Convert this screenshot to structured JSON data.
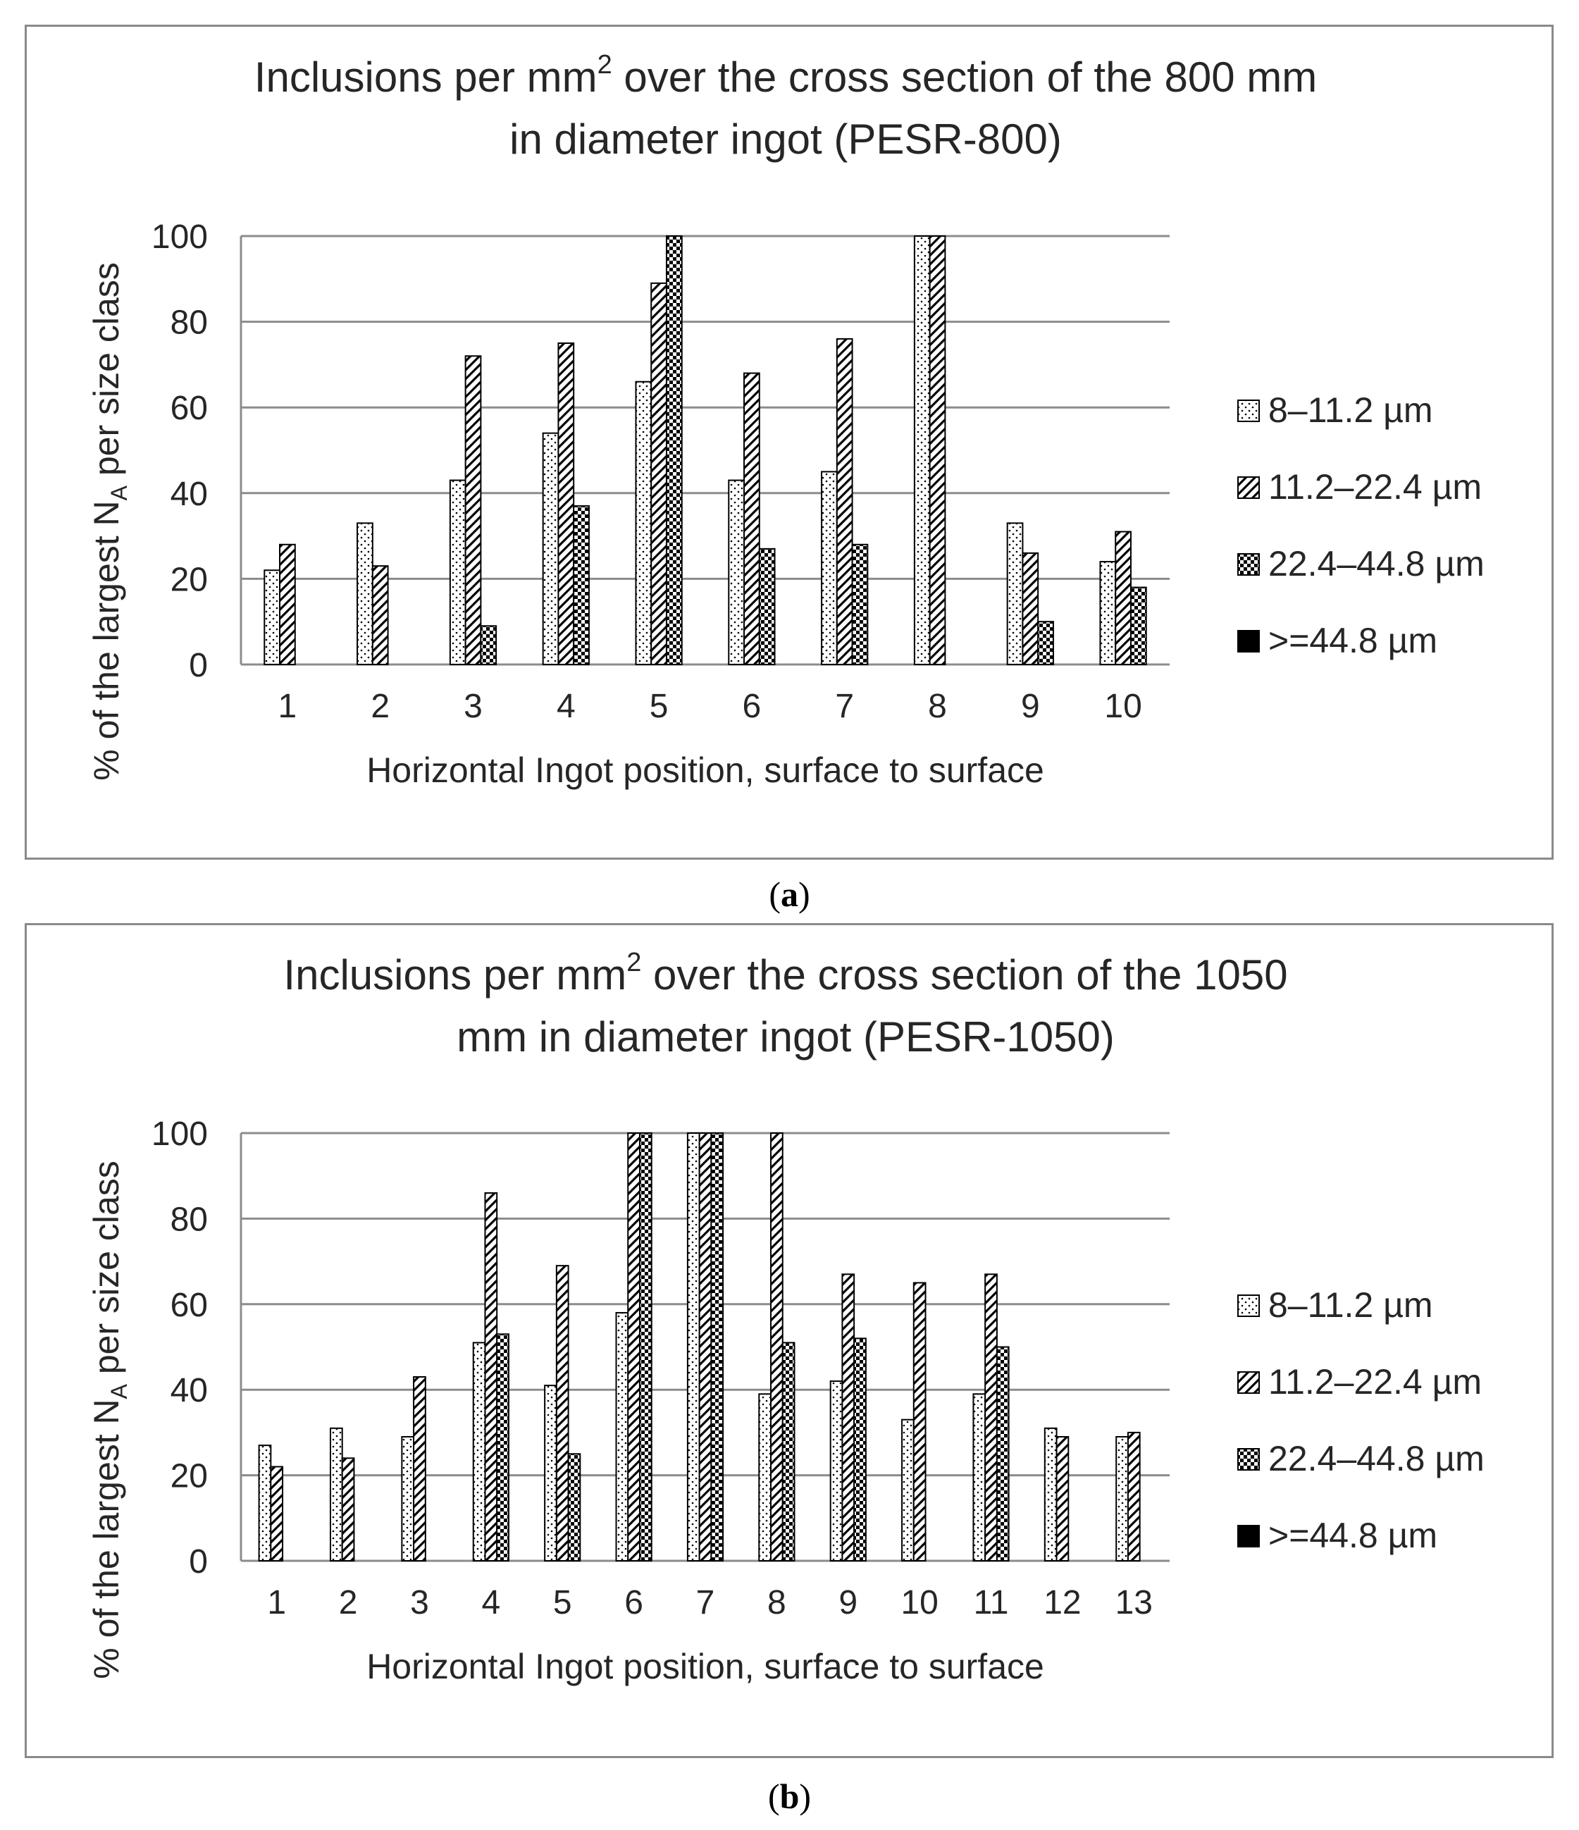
{
  "legend": [
    {
      "label": "8–11.2 µm",
      "pattern": "dots"
    },
    {
      "label": "11.2–22.4 µm",
      "pattern": "hatch"
    },
    {
      "label": "22.4–44.8 µm",
      "pattern": "checker"
    },
    {
      "label": ">=44.8 µm",
      "pattern": "solid"
    }
  ],
  "colors": {
    "frame": "#8a8a8a",
    "grid": "#8c8c8c",
    "bar_stroke": "#000000",
    "text": "#262626"
  },
  "chart_data": [
    {
      "type": "bar",
      "panel": "a",
      "caption_letter": "a",
      "title_line1": "Inclusions per mm",
      "title_sup": "2",
      "title_line1_rest": " over the cross section of the 800 mm",
      "title_line2": "in diameter ingot (PESR-800)",
      "ylabel_main": "% of the largest N",
      "ylabel_sub": "A",
      "ylabel_rest": " per size class",
      "xlabel": "Horizontal Ingot position, surface to surface",
      "ylim": [
        0,
        100
      ],
      "yticks": [
        "0",
        "20",
        "40",
        "60",
        "80",
        "100"
      ],
      "categories": [
        "1",
        "2",
        "3",
        "4",
        "5",
        "6",
        "7",
        "8",
        "9",
        "10"
      ],
      "series": [
        {
          "name": "8–11.2 µm",
          "values": [
            22,
            33,
            43,
            54,
            66,
            43,
            45,
            100,
            33,
            24
          ]
        },
        {
          "name": "11.2–22.4 µm",
          "values": [
            28,
            23,
            72,
            75,
            89,
            68,
            76,
            100,
            26,
            31
          ]
        },
        {
          "name": "22.4–44.8 µm",
          "values": [
            0,
            0,
            9,
            37,
            100,
            27,
            28,
            0,
            10,
            18
          ]
        },
        {
          "name": ">=44.8 µm",
          "values": [
            0,
            0,
            0,
            0,
            0,
            0,
            0,
            0,
            0,
            0
          ]
        }
      ]
    },
    {
      "type": "bar",
      "panel": "b",
      "caption_letter": "b",
      "title_line1": "Inclusions per mm",
      "title_sup": "2",
      "title_line1_rest": " over the cross section of the 1050",
      "title_line2": "mm in diameter ingot (PESR-1050)",
      "ylabel_main": "% of the largest N",
      "ylabel_sub": "A",
      "ylabel_rest": " per size class",
      "xlabel": "Horizontal Ingot position, surface to surface",
      "ylim": [
        0,
        100
      ],
      "yticks": [
        "0",
        "20",
        "40",
        "60",
        "80",
        "100"
      ],
      "categories": [
        "1",
        "2",
        "3",
        "4",
        "5",
        "6",
        "7",
        "8",
        "9",
        "10",
        "11",
        "12",
        "13"
      ],
      "series": [
        {
          "name": "8–11.2 µm",
          "values": [
            27,
            31,
            29,
            51,
            41,
            58,
            100,
            39,
            42,
            33,
            39,
            31,
            29
          ]
        },
        {
          "name": "11.2–22.4 µm",
          "values": [
            22,
            24,
            43,
            86,
            69,
            100,
            100,
            100,
            67,
            65,
            67,
            29,
            30
          ]
        },
        {
          "name": "22.4–44.8 µm",
          "values": [
            0,
            0,
            0,
            53,
            25,
            100,
            100,
            51,
            52,
            0,
            50,
            0,
            0
          ]
        },
        {
          "name": ">=44.8 µm",
          "values": [
            0,
            0,
            0,
            0,
            0,
            0,
            0,
            0,
            0,
            0,
            0,
            0,
            0
          ]
        }
      ]
    }
  ]
}
